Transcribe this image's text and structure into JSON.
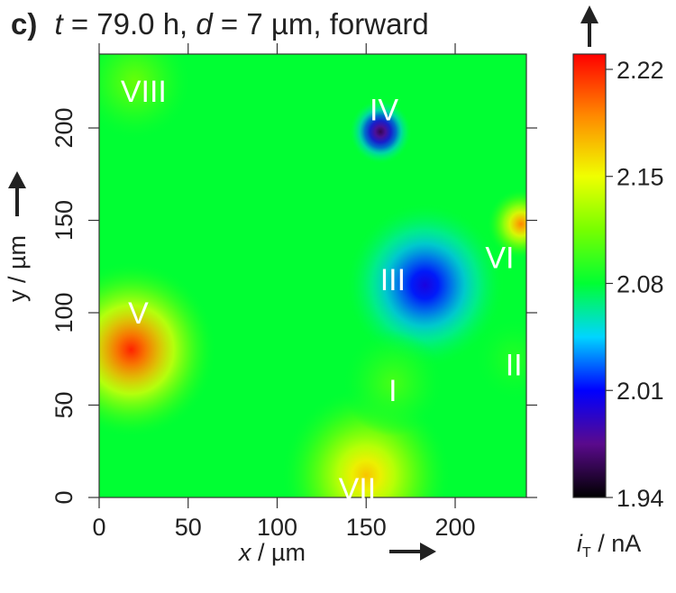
{
  "panel": {
    "letter": "c)",
    "t_symbol": "t",
    "t_value": " = 79.0 h, ",
    "d_symbol": "d",
    "d_value": " = 7 µm, forward"
  },
  "chart_data": {
    "type": "heatmap",
    "xlabel_symbol": "x",
    "xlabel_unit": " / µm",
    "ylabel": "y / µm",
    "xlim": [
      0,
      240
    ],
    "ylim": [
      0,
      240
    ],
    "x_ticks": [
      "0",
      "50",
      "100",
      "150",
      "200"
    ],
    "y_ticks": [
      "0",
      "50",
      "100",
      "150",
      "200"
    ],
    "colorbar": {
      "label_symbol": "i",
      "label_subscript": "T",
      "label_unit": " / nA",
      "range": [
        1.94,
        2.23
      ],
      "ticks": [
        "1.94",
        "2.01",
        "2.08",
        "2.15",
        "2.22"
      ],
      "stops": [
        {
          "value": 1.94,
          "color": "#000000"
        },
        {
          "value": 1.975,
          "color": "#5a0a8c"
        },
        {
          "value": 2.01,
          "color": "#0000ff"
        },
        {
          "value": 2.045,
          "color": "#00d5ff"
        },
        {
          "value": 2.08,
          "color": "#00ff33"
        },
        {
          "value": 2.115,
          "color": "#77ff00"
        },
        {
          "value": 2.15,
          "color": "#f0ff00"
        },
        {
          "value": 2.19,
          "color": "#ff8800"
        },
        {
          "value": 2.23,
          "color": "#ff0000"
        }
      ]
    },
    "background_current": 2.08,
    "features": [
      {
        "label": "IV",
        "x": 158,
        "y": 198,
        "label_x": 160,
        "label_y": 210,
        "current": 1.96,
        "radius": 11
      },
      {
        "label": "III",
        "x": 183,
        "y": 115,
        "label_x": 165,
        "label_y": 118,
        "current": 2.0,
        "radius": 28
      },
      {
        "label": "V",
        "x": 18,
        "y": 80,
        "label_x": 22,
        "label_y": 100,
        "current": 2.22,
        "radius": 30
      },
      {
        "label": "VI",
        "x": 237,
        "y": 148,
        "label_x": 225,
        "label_y": 130,
        "current": 2.19,
        "radius": 12
      },
      {
        "label": "VII",
        "x": 150,
        "y": 12,
        "label_x": 145,
        "label_y": 5,
        "current": 2.17,
        "radius": 30
      },
      {
        "label": "VIII",
        "x": 20,
        "y": 225,
        "label_x": 25,
        "label_y": 220,
        "current": 2.11,
        "radius": 20
      },
      {
        "label": "I",
        "x": 165,
        "y": 62,
        "label_x": 165,
        "label_y": 58,
        "current": 2.1,
        "radius": 18
      },
      {
        "label": "II",
        "x": 233,
        "y": 75,
        "label_x": 233,
        "label_y": 72,
        "current": 2.09,
        "radius": 14
      }
    ]
  }
}
